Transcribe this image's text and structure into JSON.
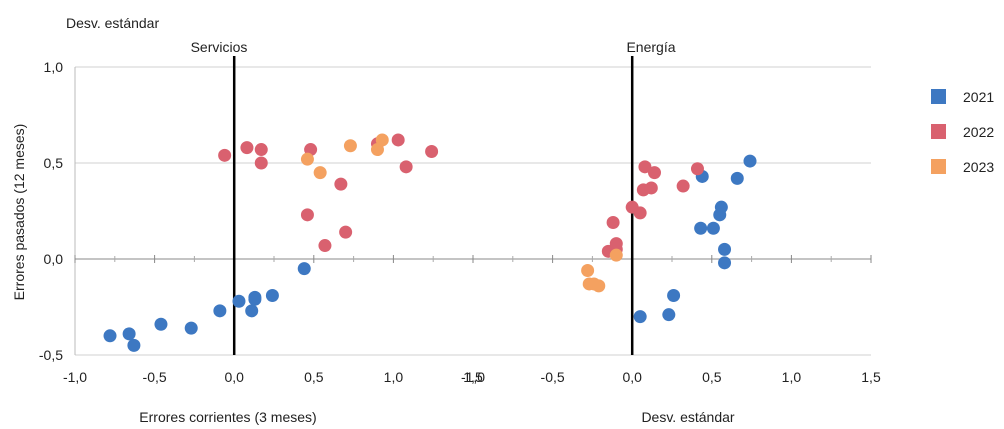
{
  "chart_data": {
    "type": "scatter",
    "top_label": "Desv. estándar",
    "ylabel": "Errores pasados (12 meses)",
    "xlabel_left": "Errores corrientes (3 meses)",
    "xlabel_right": "Desv. estándar",
    "ylim": [
      -0.5,
      1.0
    ],
    "yticks": [
      "1,0",
      "0,5",
      "0,0",
      "-0,5"
    ],
    "legend_position": "right",
    "grid": "horizontal",
    "legend": [
      {
        "name": "2021",
        "color": "#3d78c2"
      },
      {
        "name": "2022",
        "color": "#d9616f"
      },
      {
        "name": "2023",
        "color": "#f4a160"
      }
    ],
    "panels": [
      {
        "title": "Servicios",
        "xlim": [
          -1.0,
          1.5
        ],
        "xticks": [
          "-1,0",
          "-0,5",
          "0,0",
          "0,5",
          "1,0",
          "1,5"
        ],
        "points": {
          "2021": [
            [
              -0.78,
              -0.4
            ],
            [
              -0.66,
              -0.39
            ],
            [
              -0.63,
              -0.45
            ],
            [
              -0.46,
              -0.34
            ],
            [
              -0.27,
              -0.36
            ],
            [
              -0.09,
              -0.27
            ],
            [
              0.03,
              -0.22
            ],
            [
              0.11,
              -0.27
            ],
            [
              0.13,
              -0.2
            ],
            [
              0.13,
              -0.21
            ],
            [
              0.24,
              -0.19
            ],
            [
              0.44,
              -0.05
            ]
          ],
          "2022": [
            [
              -0.06,
              0.54
            ],
            [
              0.08,
              0.58
            ],
            [
              0.17,
              0.57
            ],
            [
              0.17,
              0.5
            ],
            [
              0.46,
              0.23
            ],
            [
              0.48,
              0.57
            ],
            [
              0.57,
              0.07
            ],
            [
              0.67,
              0.39
            ],
            [
              0.7,
              0.14
            ],
            [
              0.9,
              0.6
            ],
            [
              1.03,
              0.62
            ],
            [
              1.08,
              0.48
            ],
            [
              1.24,
              0.56
            ]
          ],
          "2023": [
            [
              0.46,
              0.52
            ],
            [
              0.54,
              0.45
            ],
            [
              0.73,
              0.59
            ],
            [
              0.9,
              0.57
            ],
            [
              0.93,
              0.62
            ]
          ]
        }
      },
      {
        "title": "Energía",
        "xlim": [
          -1.0,
          1.5
        ],
        "xticks": [
          "-1,0",
          "-0,5",
          "0,0",
          "0,5",
          "1,0",
          "1,5"
        ],
        "points": {
          "2021": [
            [
              0.05,
              -0.3
            ],
            [
              0.23,
              -0.29
            ],
            [
              0.26,
              -0.19
            ],
            [
              0.43,
              0.16
            ],
            [
              0.44,
              0.43
            ],
            [
              0.51,
              0.16
            ],
            [
              0.55,
              0.23
            ],
            [
              0.56,
              0.27
            ],
            [
              0.58,
              0.05
            ],
            [
              0.58,
              -0.02
            ],
            [
              0.66,
              0.42
            ],
            [
              0.74,
              0.51
            ]
          ],
          "2022": [
            [
              -0.15,
              0.04
            ],
            [
              -0.12,
              0.19
            ],
            [
              -0.1,
              0.05
            ],
            [
              -0.1,
              0.08
            ],
            [
              0.0,
              0.27
            ],
            [
              0.05,
              0.24
            ],
            [
              0.07,
              0.36
            ],
            [
              0.08,
              0.48
            ],
            [
              0.12,
              0.37
            ],
            [
              0.14,
              0.45
            ],
            [
              0.32,
              0.38
            ],
            [
              0.41,
              0.47
            ]
          ],
          "2023": [
            [
              -0.28,
              -0.06
            ],
            [
              -0.27,
              -0.13
            ],
            [
              -0.24,
              -0.13
            ],
            [
              -0.21,
              -0.14
            ],
            [
              -0.1,
              0.02
            ]
          ]
        }
      }
    ]
  }
}
